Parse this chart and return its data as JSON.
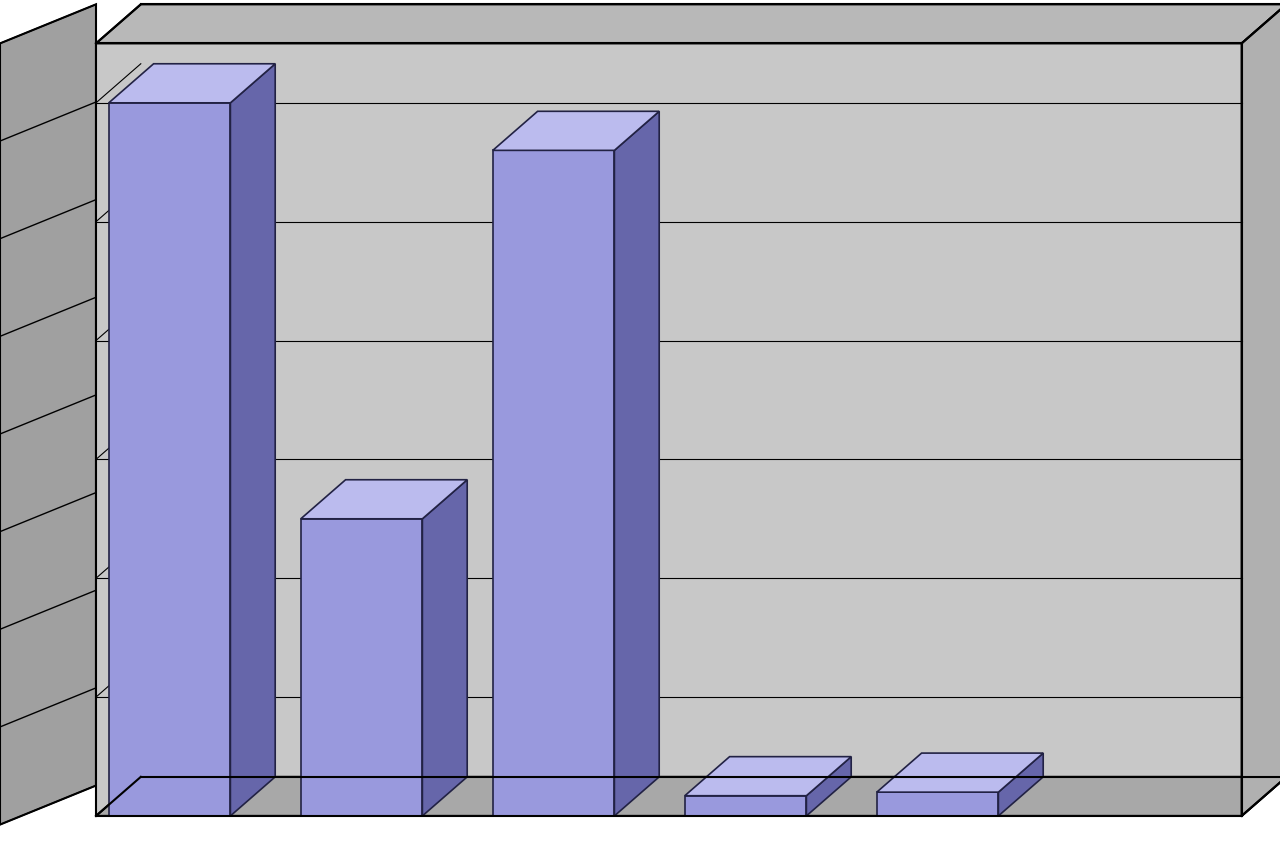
{
  "title": "",
  "values": [
    0.6,
    0.25,
    0.56,
    0.017,
    0.02
  ],
  "bar_color_face": "#9999DD",
  "bar_color_top": "#BBBBEE",
  "bar_color_side": "#6666AA",
  "wall_color": "#C8C8C8",
  "side_wall_color": "#A0A0A0",
  "floor_color": "#A8A8A8",
  "ylim": [
    0.0,
    0.65
  ],
  "grid_vals": [
    0.1,
    0.2,
    0.3,
    0.4,
    0.5,
    0.6
  ],
  "figsize": [
    12.8,
    8.68
  ],
  "dpi": 100
}
